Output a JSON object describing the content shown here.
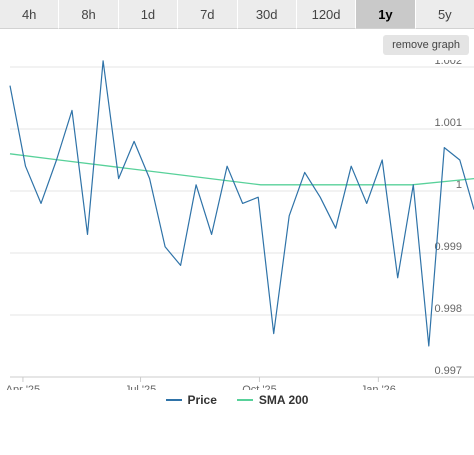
{
  "tabs": [
    {
      "label": "4h",
      "active": false
    },
    {
      "label": "8h",
      "active": false
    },
    {
      "label": "1d",
      "active": false
    },
    {
      "label": "7d",
      "active": false
    },
    {
      "label": "30d",
      "active": false
    },
    {
      "label": "120d",
      "active": false
    },
    {
      "label": "1y",
      "active": true
    },
    {
      "label": "5y",
      "active": false
    }
  ],
  "remove_graph_label": "remove graph",
  "colors": {
    "price": "#2f73a8",
    "sma": "#58d19a",
    "grid": "#e6e6e6",
    "axis_text": "#666666"
  },
  "chart_data": {
    "type": "line",
    "title": "",
    "xlabel": "",
    "ylabel": "",
    "ylim": [
      0.997,
      1.002
    ],
    "yticks": [
      0.997,
      0.998,
      0.999,
      1,
      1.001,
      1.002
    ],
    "ytick_labels": [
      "0.997",
      "0.998",
      "0.999",
      "1",
      "1.001",
      "1.002"
    ],
    "xlim": [
      "2025-03-22",
      "2026-03-16"
    ],
    "xticks": [
      {
        "date": "2025-04-01",
        "label": "Apr '25"
      },
      {
        "date": "2025-07-01",
        "label": "Jul '25"
      },
      {
        "date": "2025-10-01",
        "label": "Oct '25"
      },
      {
        "date": "2026-01-01",
        "label": "Jan '26"
      }
    ],
    "grid": true,
    "legend_position": "bottom-center",
    "series": [
      {
        "name": "Price",
        "x": [
          "2025-03-22",
          "2025-04-03",
          "2025-04-15",
          "2025-04-27",
          "2025-05-09",
          "2025-05-21",
          "2025-06-02",
          "2025-06-14",
          "2025-06-26",
          "2025-07-08",
          "2025-07-20",
          "2025-08-01",
          "2025-08-13",
          "2025-08-25",
          "2025-09-06",
          "2025-09-18",
          "2025-09-30",
          "2025-10-12",
          "2025-10-24",
          "2025-11-05",
          "2025-11-17",
          "2025-11-29",
          "2025-12-11",
          "2025-12-23",
          "2026-01-04",
          "2026-01-16",
          "2026-01-28",
          "2026-02-09",
          "2026-02-21",
          "2026-03-05",
          "2026-03-16"
        ],
        "values": [
          1.0017,
          1.0004,
          0.9998,
          1.0005,
          1.0013,
          0.9993,
          1.0021,
          1.0002,
          1.0008,
          1.0002,
          0.9991,
          0.9988,
          1.0001,
          0.9993,
          1.0004,
          0.9998,
          0.9999,
          0.9977,
          0.9996,
          1.0003,
          0.9999,
          0.9994,
          1.0004,
          0.9998,
          1.0005,
          0.9986,
          1.0001,
          0.9975,
          1.0007,
          1.0005,
          0.9997
        ]
      },
      {
        "name": "SMA 200",
        "x": [
          "2025-03-22",
          "2025-04-29",
          "2025-06-07",
          "2025-07-16",
          "2025-08-24",
          "2025-10-02",
          "2025-11-10",
          "2025-12-19",
          "2026-01-27",
          "2026-03-16"
        ],
        "values": [
          1.0006,
          1.0005,
          1.0004,
          1.0003,
          1.0002,
          1.0001,
          1.0001,
          1.0001,
          1.0001,
          1.0002
        ]
      }
    ]
  }
}
